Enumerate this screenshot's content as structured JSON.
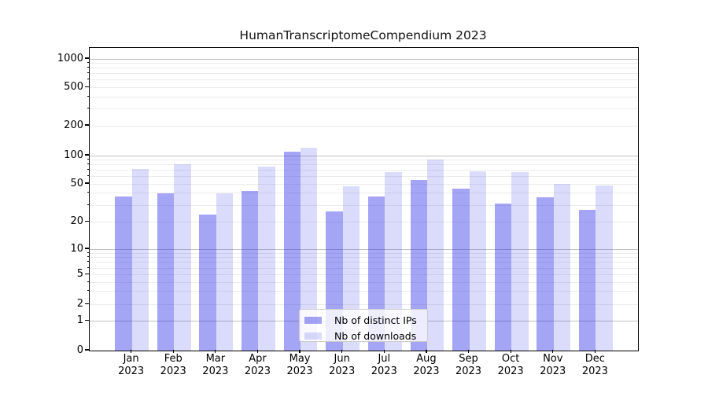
{
  "title": "HumanTranscriptomeCompendium 2023",
  "chart_data": {
    "type": "bar",
    "title": "HumanTranscriptomeCompendium 2023",
    "categories": [
      "Jan",
      "Feb",
      "Mar",
      "Apr",
      "May",
      "Jun",
      "Jul",
      "Aug",
      "Sep",
      "Oct",
      "Nov",
      "Dec"
    ],
    "category_year": "2023",
    "series": [
      {
        "name": "Nb of distinct IPs",
        "color": "rgba(40,40,230,0.42)",
        "values": [
          37,
          40,
          24,
          42,
          110,
          26,
          37,
          55,
          45,
          31,
          36,
          27
        ]
      },
      {
        "name": "Nb of downloads",
        "color": "rgba(40,40,230,0.17)",
        "values": [
          72,
          81,
          40,
          77,
          120,
          47,
          67,
          91,
          68,
          67,
          50,
          48
        ]
      }
    ],
    "xlabel": "",
    "ylabel": "",
    "yscale": "symlog",
    "ylim": [
      0,
      1300
    ],
    "y_ticks": [
      0,
      1,
      2,
      5,
      10,
      20,
      50,
      100,
      200,
      500,
      1000
    ],
    "y_tick_labels": [
      "0",
      "1",
      "2",
      "5",
      "10",
      "20",
      "50",
      "100",
      "200",
      "500",
      "1000"
    ],
    "y_major_grid_values": [
      1,
      10,
      100,
      1000
    ],
    "grid": true,
    "legend_position": "lower center"
  },
  "legend": {
    "items": [
      {
        "label": "Nb of distinct IPs",
        "color": "rgba(40,40,230,0.42)"
      },
      {
        "label": "Nb of downloads",
        "color": "rgba(40,40,230,0.17)"
      }
    ]
  }
}
